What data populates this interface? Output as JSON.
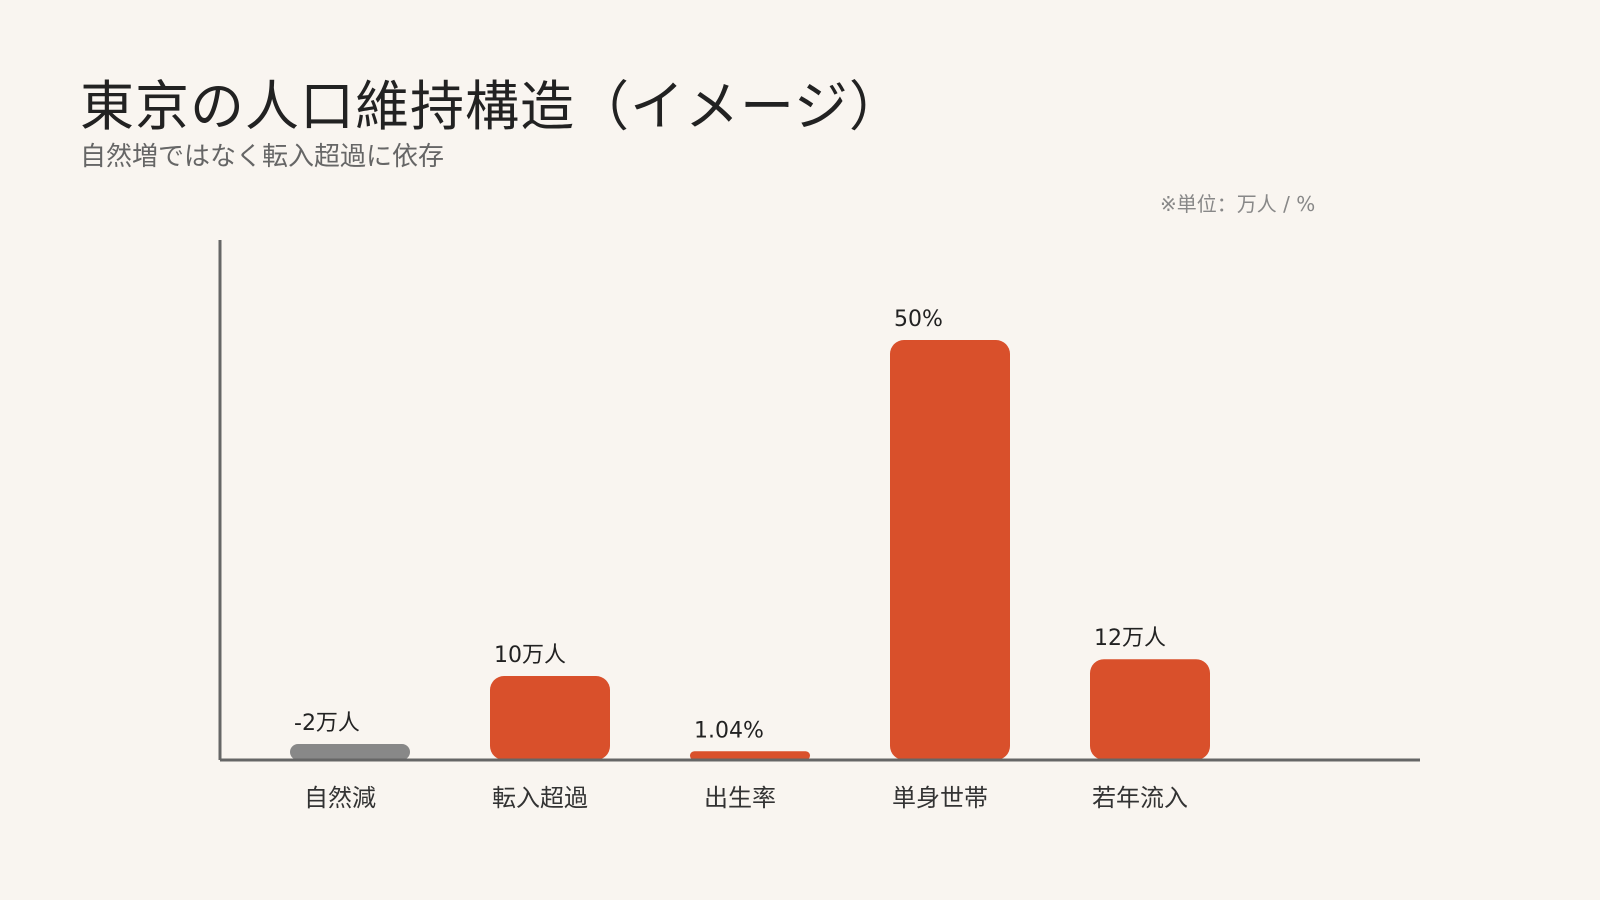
{
  "title": "東京の人口維持構造（イメージ）",
  "subtitle": "自然増ではなく転入超過に依存",
  "unit_note": "※単位：万人 / %",
  "colors": {
    "accent": "#d9502b",
    "negative": "#888888",
    "axis": "#666666",
    "background": "#f9f5f0"
  },
  "chart_data": {
    "type": "bar",
    "title": "東京の人口維持構造（イメージ）",
    "categories": [
      "自然減",
      "転入超過",
      "出生率",
      "単身世帯",
      "若年流入"
    ],
    "values": [
      -2,
      10,
      1.04,
      50,
      12
    ],
    "data_labels": [
      "-2万人",
      "10万人",
      "1.04%",
      "50%",
      "12万人"
    ],
    "bar_colors": [
      "#888888",
      "#d9502b",
      "#d9502b",
      "#d9502b",
      "#d9502b"
    ],
    "xlabel": "",
    "ylabel": "",
    "ylim": [
      0,
      60
    ],
    "grid": false
  }
}
